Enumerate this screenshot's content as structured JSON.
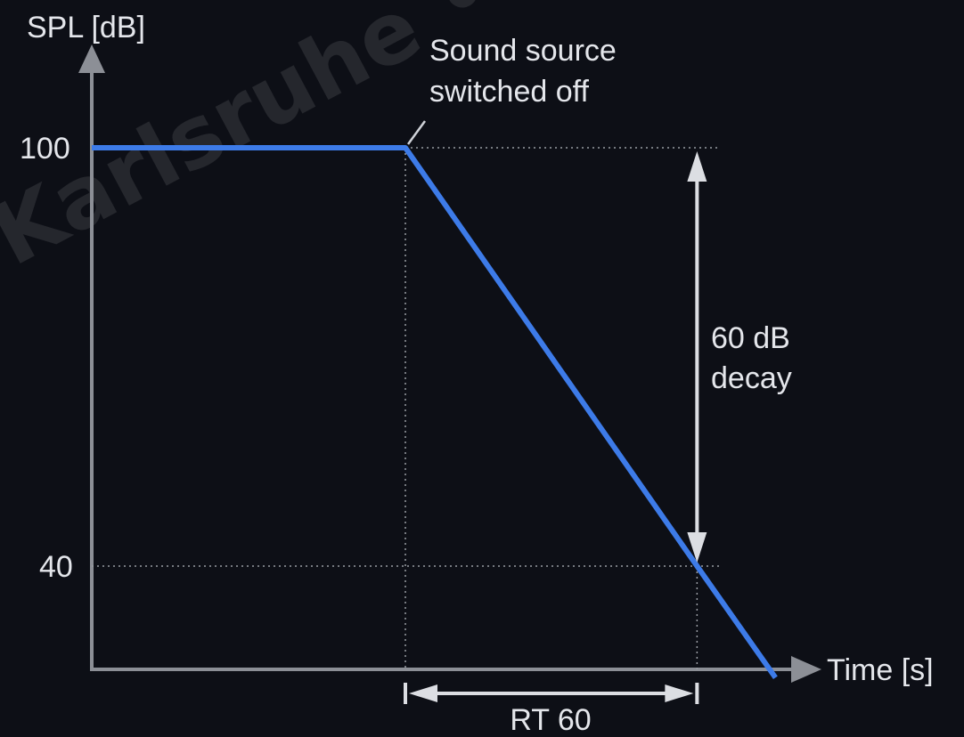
{
  "chart_data": {
    "type": "line",
    "title": "",
    "xlabel": "Time [s]",
    "ylabel": "SPL [dB]",
    "yticks": [
      "100",
      "40"
    ],
    "series": [
      {
        "x": [
          0,
          1,
          1.93,
          2.18
        ],
        "y": [
          100,
          100,
          40,
          24
        ]
      }
    ],
    "annotations": {
      "switch_off": "Sound source switched off",
      "switch_off_lines": [
        "Sound source",
        "switched off"
      ],
      "decay": "60 dB decay",
      "decay_lines": [
        "60 dB",
        "decay"
      ],
      "rt60": "RT 60"
    },
    "watermark": "Karlsruhe • Co",
    "grid": false,
    "legend": "none",
    "colors": {
      "background": "#0d0f16",
      "line": "#3d7be8",
      "axis": "#8c8f96",
      "text": "#e4e6eb",
      "guides": "#9a9da4"
    }
  }
}
